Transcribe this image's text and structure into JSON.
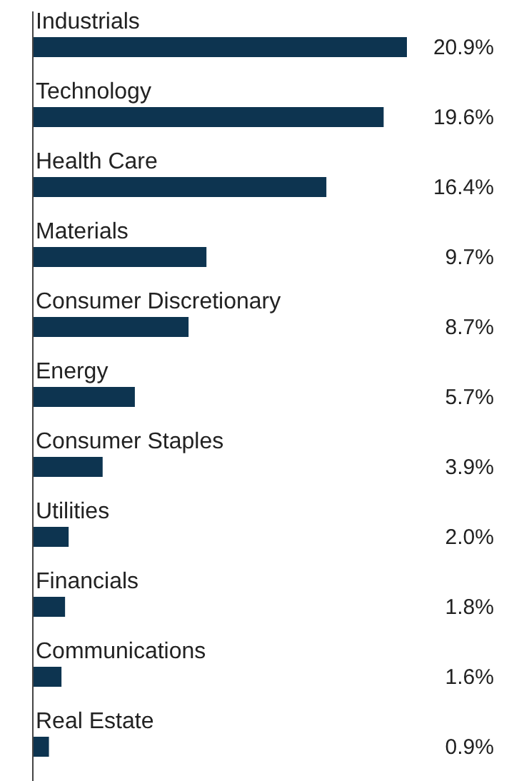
{
  "chart_data": {
    "type": "bar",
    "orientation": "horizontal",
    "categories": [
      "Industrials",
      "Technology",
      "Health Care",
      "Materials",
      "Consumer Discretionary",
      "Energy",
      "Consumer Staples",
      "Utilities",
      "Financials",
      "Communications",
      "Real Estate"
    ],
    "values": [
      20.9,
      19.6,
      16.4,
      9.7,
      8.7,
      5.7,
      3.9,
      2.0,
      1.8,
      1.6,
      0.9
    ],
    "value_labels": [
      "20.9%",
      "19.6%",
      "16.4%",
      "9.7%",
      "8.7%",
      "5.7%",
      "3.9%",
      "2.0%",
      "1.8%",
      "1.6%",
      "0.9%"
    ],
    "color": "#0d3450",
    "grid": false,
    "legend": false
  }
}
